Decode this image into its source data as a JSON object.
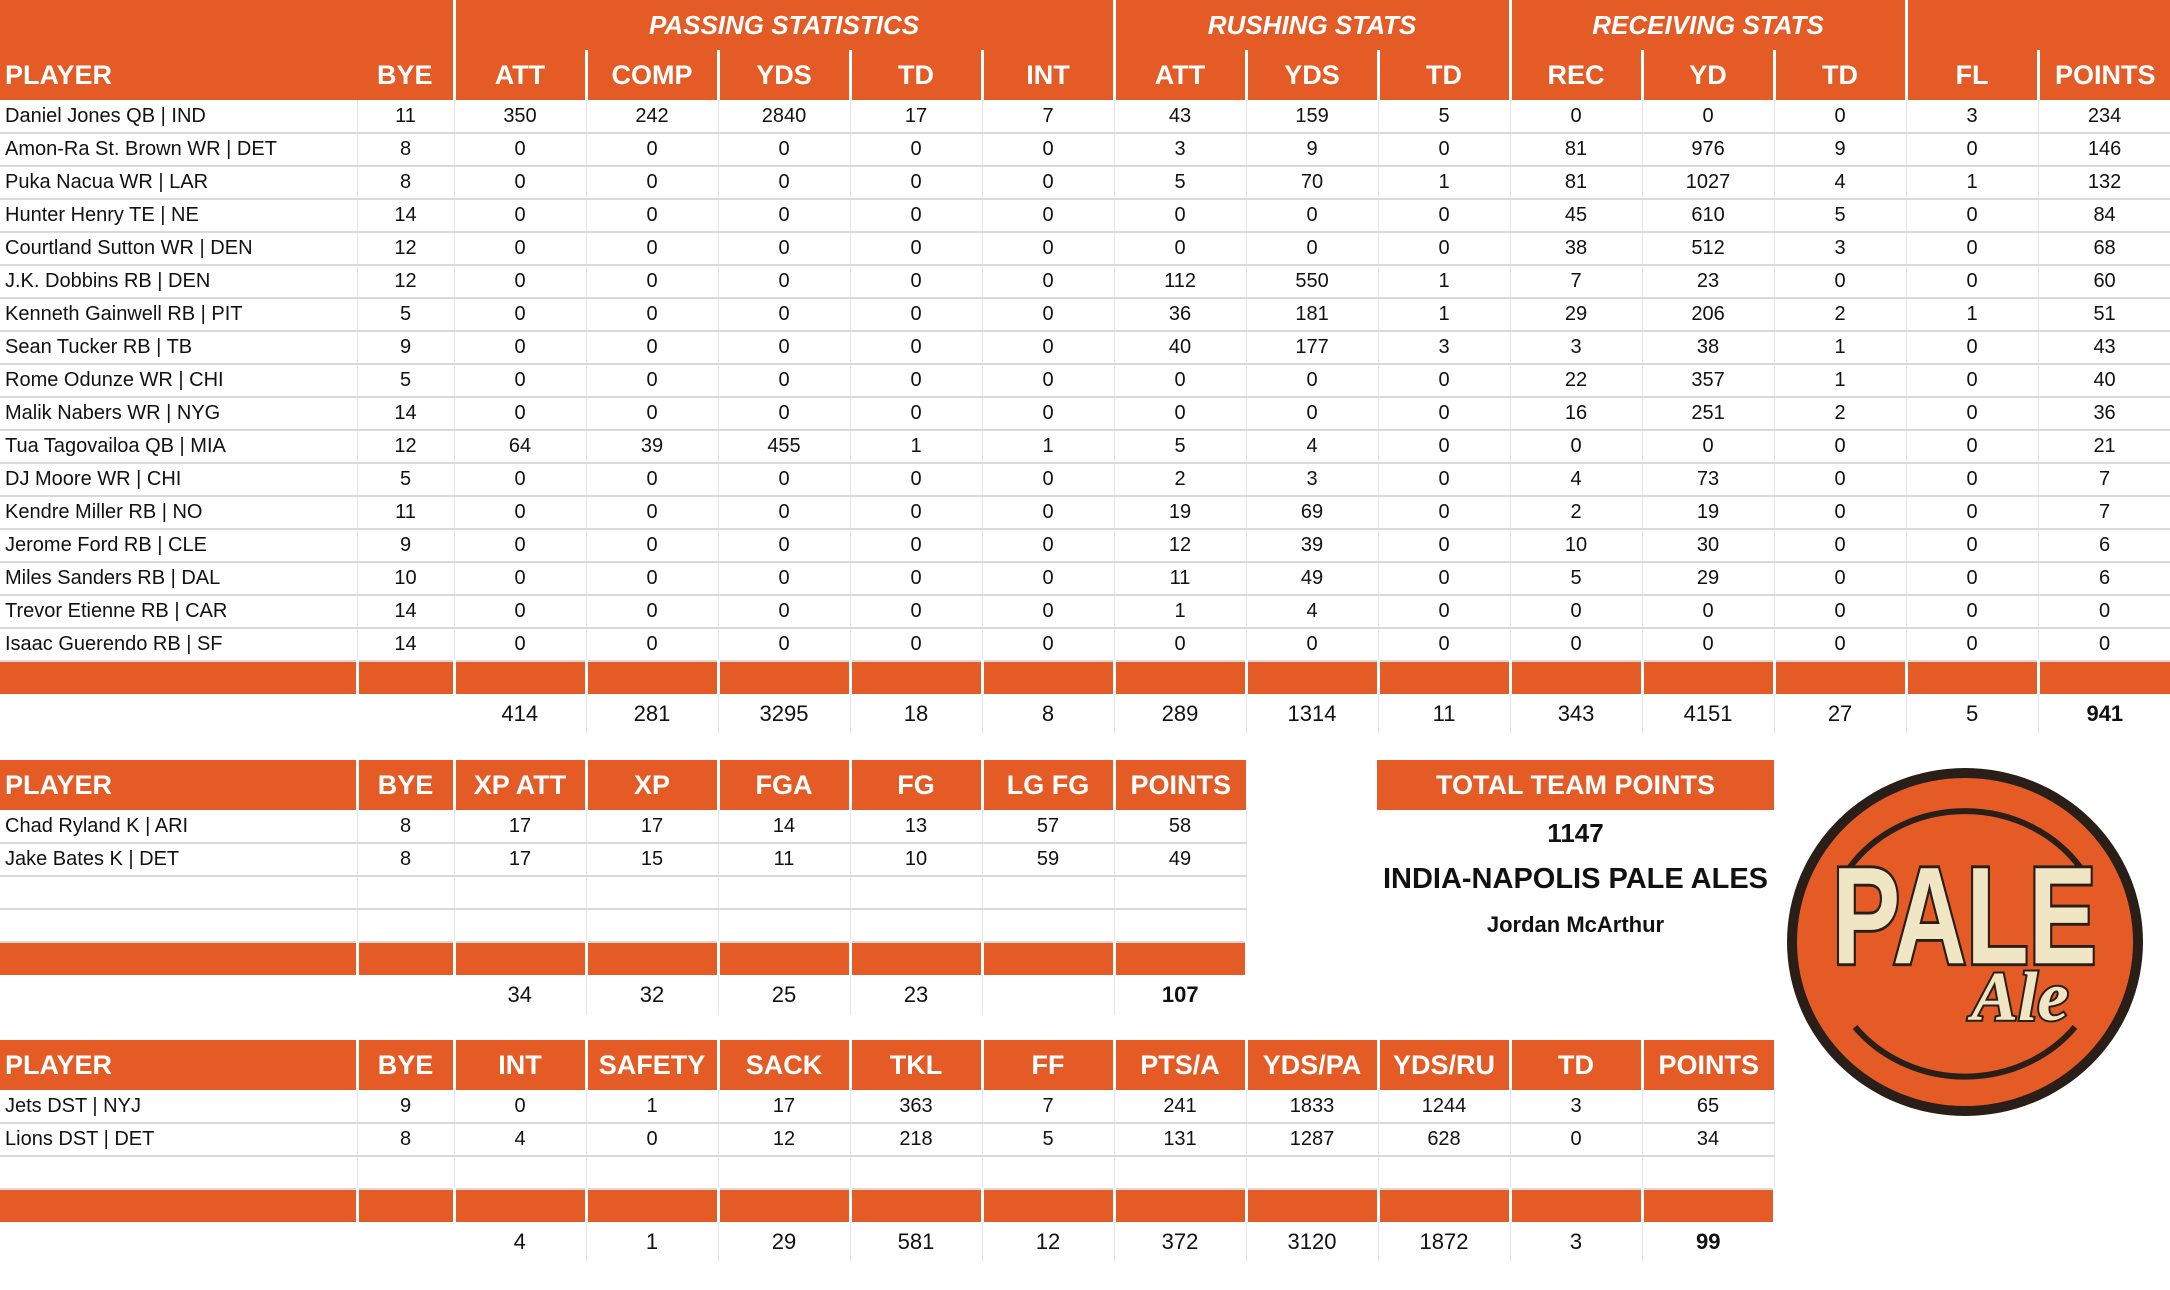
{
  "colors": {
    "accent": "#e55b26",
    "logo_cream": "#f1e6c4",
    "logo_outline": "#2a1e18"
  },
  "main_table": {
    "group_headers": {
      "passing": "PASSING STATISTICS",
      "rushing": "RUSHING STATS",
      "receiving": "RECEIVING STATS"
    },
    "columns": [
      "PLAYER",
      "BYE",
      "ATT",
      "COMP",
      "YDS",
      "TD",
      "INT",
      "ATT",
      "YDS",
      "TD",
      "REC",
      "YD",
      "TD",
      "FL",
      "POINTS"
    ],
    "rows": [
      [
        "Daniel Jones QB | IND",
        "11",
        "350",
        "242",
        "2840",
        "17",
        "7",
        "43",
        "159",
        "5",
        "0",
        "0",
        "0",
        "3",
        "234"
      ],
      [
        "Amon-Ra St. Brown WR | DET",
        "8",
        "0",
        "0",
        "0",
        "0",
        "0",
        "3",
        "9",
        "0",
        "81",
        "976",
        "9",
        "0",
        "146"
      ],
      [
        "Puka Nacua WR | LAR",
        "8",
        "0",
        "0",
        "0",
        "0",
        "0",
        "5",
        "70",
        "1",
        "81",
        "1027",
        "4",
        "1",
        "132"
      ],
      [
        "Hunter Henry TE | NE",
        "14",
        "0",
        "0",
        "0",
        "0",
        "0",
        "0",
        "0",
        "0",
        "45",
        "610",
        "5",
        "0",
        "84"
      ],
      [
        "Courtland Sutton WR | DEN",
        "12",
        "0",
        "0",
        "0",
        "0",
        "0",
        "0",
        "0",
        "0",
        "38",
        "512",
        "3",
        "0",
        "68"
      ],
      [
        "J.K. Dobbins RB | DEN",
        "12",
        "0",
        "0",
        "0",
        "0",
        "0",
        "112",
        "550",
        "1",
        "7",
        "23",
        "0",
        "0",
        "60"
      ],
      [
        "Kenneth Gainwell RB | PIT",
        "5",
        "0",
        "0",
        "0",
        "0",
        "0",
        "36",
        "181",
        "1",
        "29",
        "206",
        "2",
        "1",
        "51"
      ],
      [
        "Sean Tucker RB | TB",
        "9",
        "0",
        "0",
        "0",
        "0",
        "0",
        "40",
        "177",
        "3",
        "3",
        "38",
        "1",
        "0",
        "43"
      ],
      [
        "Rome Odunze WR | CHI",
        "5",
        "0",
        "0",
        "0",
        "0",
        "0",
        "0",
        "0",
        "0",
        "22",
        "357",
        "1",
        "0",
        "40"
      ],
      [
        "Malik Nabers WR | NYG",
        "14",
        "0",
        "0",
        "0",
        "0",
        "0",
        "0",
        "0",
        "0",
        "16",
        "251",
        "2",
        "0",
        "36"
      ],
      [
        "Tua Tagovailoa QB | MIA",
        "12",
        "64",
        "39",
        "455",
        "1",
        "1",
        "5",
        "4",
        "0",
        "0",
        "0",
        "0",
        "0",
        "21"
      ],
      [
        "DJ Moore WR | CHI",
        "5",
        "0",
        "0",
        "0",
        "0",
        "0",
        "2",
        "3",
        "0",
        "4",
        "73",
        "0",
        "0",
        "7"
      ],
      [
        "Kendre Miller RB | NO",
        "11",
        "0",
        "0",
        "0",
        "0",
        "0",
        "19",
        "69",
        "0",
        "2",
        "19",
        "0",
        "0",
        "7"
      ],
      [
        "Jerome Ford RB | CLE",
        "9",
        "0",
        "0",
        "0",
        "0",
        "0",
        "12",
        "39",
        "0",
        "10",
        "30",
        "0",
        "0",
        "6"
      ],
      [
        "Miles Sanders RB | DAL",
        "10",
        "0",
        "0",
        "0",
        "0",
        "0",
        "11",
        "49",
        "0",
        "5",
        "29",
        "0",
        "0",
        "6"
      ],
      [
        "Trevor Etienne RB | CAR",
        "14",
        "0",
        "0",
        "0",
        "0",
        "0",
        "1",
        "4",
        "0",
        "0",
        "0",
        "0",
        "0",
        "0"
      ],
      [
        "Isaac Guerendo RB | SF",
        "14",
        "0",
        "0",
        "0",
        "0",
        "0",
        "0",
        "0",
        "0",
        "0",
        "0",
        "0",
        "0",
        "0"
      ]
    ],
    "totals": [
      "",
      "",
      "414",
      "281",
      "3295",
      "18",
      "8",
      "289",
      "1314",
      "11",
      "343",
      "4151",
      "27",
      "5",
      "941"
    ]
  },
  "kicker_table": {
    "columns": [
      "PLAYER",
      "BYE",
      "XP ATT",
      "XP",
      "FGA",
      "FG",
      "LG FG",
      "POINTS"
    ],
    "rows": [
      [
        "Chad Ryland K | ARI",
        "8",
        "17",
        "17",
        "14",
        "13",
        "57",
        "58"
      ],
      [
        "Jake Bates K | DET",
        "8",
        "17",
        "15",
        "11",
        "10",
        "59",
        "49"
      ]
    ],
    "totals": [
      "",
      "",
      "34",
      "32",
      "25",
      "23",
      "",
      "107"
    ]
  },
  "defense_table": {
    "columns": [
      "PLAYER",
      "BYE",
      "INT",
      "SAFETY",
      "SACK",
      "TKL",
      "FF",
      "PTS/A",
      "YDS/PA",
      "YDS/RU",
      "TD",
      "POINTS"
    ],
    "rows": [
      [
        "Jets DST | NYJ",
        "9",
        "0",
        "1",
        "17",
        "363",
        "7",
        "241",
        "1833",
        "1244",
        "3",
        "65"
      ],
      [
        "Lions DST | DET",
        "8",
        "4",
        "0",
        "12",
        "218",
        "5",
        "131",
        "1287",
        "628",
        "0",
        "34"
      ]
    ],
    "totals": [
      "",
      "",
      "4",
      "1",
      "29",
      "581",
      "12",
      "372",
      "3120",
      "1872",
      "3",
      "99"
    ]
  },
  "summary": {
    "title": "TOTAL TEAM POINTS",
    "total_points": "1147",
    "team_name": "INDIA-NAPOLIS PALE ALES",
    "owner": "Jordan McArthur"
  },
  "logo": {
    "line1": "PALE",
    "line2": "Ale"
  }
}
